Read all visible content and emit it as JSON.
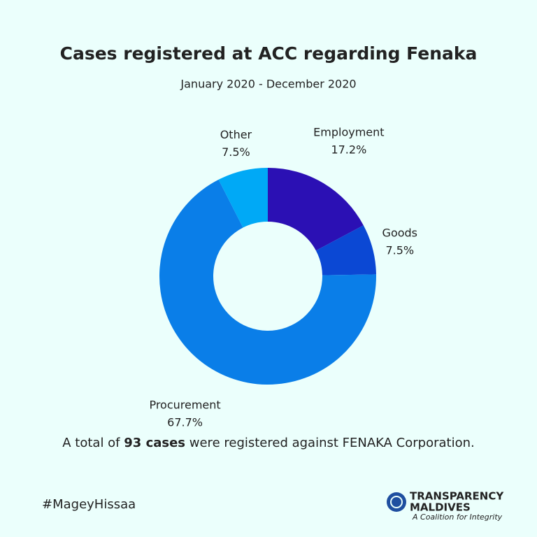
{
  "chart_data": {
    "type": "donut",
    "title": "Cases registered at ACC regarding Fenaka",
    "subtitle": "January 2020 - December 2020",
    "categories": [
      "Employment",
      "Goods",
      "Procurement",
      "Other"
    ],
    "values": [
      17.2,
      7.5,
      67.7,
      7.5
    ],
    "value_labels": [
      "17.2%",
      "7.5%",
      "67.7%",
      "7.5%"
    ],
    "colors": [
      "#2b10b4",
      "#0b48d4",
      "#0a7ee8",
      "#00a9f6"
    ]
  },
  "footnote": {
    "before": "A total of",
    "bold": "93 cases",
    "after": "were registered against FENAKA Corporation."
  },
  "hashtag": "#MageyHissaa",
  "logo": {
    "name": "TRANSPARENCY",
    "country": "MALDIVES",
    "tagline": "A Coalition for Integrity"
  }
}
